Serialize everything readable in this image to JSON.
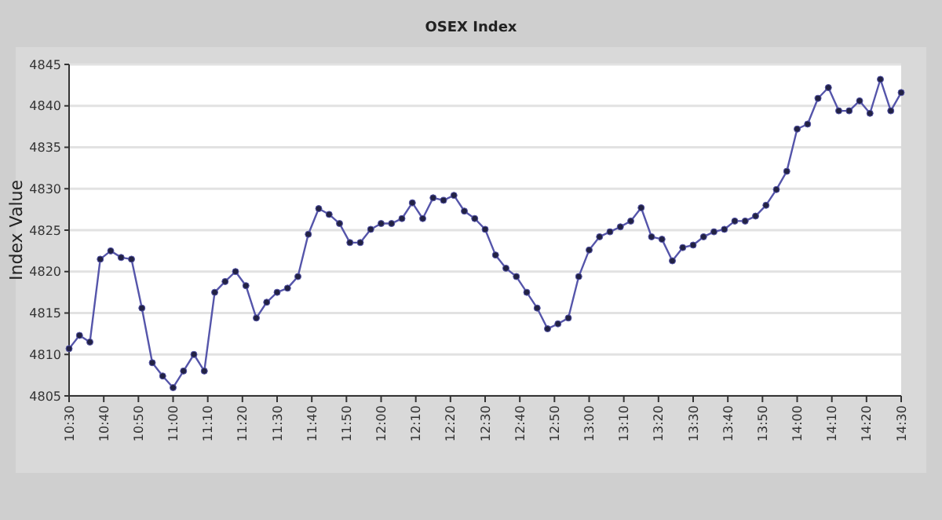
{
  "chart_data": {
    "type": "line",
    "title": "OSEX Index",
    "ylabel": "Index Value",
    "x": [
      10.5,
      10.55,
      10.6,
      10.65,
      10.7,
      10.75,
      10.8,
      10.85,
      10.9,
      10.95,
      11,
      11.05,
      11.1,
      11.15,
      11.2,
      11.25,
      11.3,
      11.35,
      11.4,
      11.45,
      11.5,
      11.55,
      11.6,
      11.65,
      11.7,
      11.75,
      11.8,
      11.85,
      11.9,
      11.95,
      12,
      12.05,
      12.1,
      12.15,
      12.2,
      12.25,
      12.3,
      12.35,
      12.4,
      12.45,
      12.5,
      12.55,
      12.6,
      12.65,
      12.7,
      12.75,
      12.8,
      12.85,
      12.9,
      12.95,
      13,
      13.05,
      13.1,
      13.15,
      13.2,
      13.25,
      13.3,
      13.35,
      13.4,
      13.45,
      13.5,
      13.55,
      13.6,
      13.65,
      13.7,
      13.75,
      13.8,
      13.85,
      13.9,
      13.95,
      14,
      14.05,
      14.1,
      14.15,
      14.2,
      14.25,
      14.3,
      14.35,
      14.4,
      14.45,
      14.5
    ],
    "series": [
      {
        "color": "#5555aa",
        "values": [
          4810.7,
          4812.3,
          4811.5,
          4821.5,
          4822.5,
          4821.7,
          4821.5,
          4815.6,
          4809,
          4807.4,
          4806,
          4808,
          4810,
          4808,
          4817.5,
          4818.8,
          4820,
          4818.3,
          4814.4,
          4816.3,
          4817.5,
          4818,
          4819.4,
          4824.5,
          4827.6,
          4826.9,
          4825.8,
          4823.5,
          4823.5,
          4825.1,
          4825.8,
          4825.8,
          4826.4,
          4828.3,
          4826.4,
          4828.9,
          4828.6,
          4829.2,
          4827.3,
          4826.4,
          4825.1,
          4822,
          4820.4,
          4819.4,
          4817.5,
          4815.6,
          4813.1,
          4813.7,
          4814.4,
          4819.4,
          4822.6,
          4824.2,
          4824.8,
          4825.4,
          4826.1,
          4827.7,
          4824.2,
          4823.9,
          4821.3,
          4822.9,
          4823.2,
          4824.2,
          4824.8,
          4825.1,
          4826.1,
          4826.1,
          4826.7,
          4828,
          4829.9,
          4832.1,
          4837.2,
          4837.8,
          4840.9,
          4842.2,
          4839.4,
          4839.4,
          4840.6,
          4839.1,
          4843.2,
          4839.4,
          4841.6
        ]
      }
    ],
    "xlim": [
      10.5,
      14.5
    ],
    "xticks": [
      {
        "value": 10.5,
        "label": "10:30"
      },
      {
        "value": 10.6667,
        "label": "10:40"
      },
      {
        "value": 10.8333,
        "label": "10:50"
      },
      {
        "value": 11,
        "label": "11:00"
      },
      {
        "value": 11.1667,
        "label": "11:10"
      },
      {
        "value": 11.3333,
        "label": "11:20"
      },
      {
        "value": 11.5,
        "label": "11:30"
      },
      {
        "value": 11.6667,
        "label": "11:40"
      },
      {
        "value": 11.8333,
        "label": "11:50"
      },
      {
        "value": 12,
        "label": "12:00"
      },
      {
        "value": 12.1667,
        "label": "12:10"
      },
      {
        "value": 12.3333,
        "label": "12:20"
      },
      {
        "value": 12.5,
        "label": "12:30"
      },
      {
        "value": 12.6667,
        "label": "12:40"
      },
      {
        "value": 12.8333,
        "label": "12:50"
      },
      {
        "value": 13,
        "label": "13:00"
      },
      {
        "value": 13.1667,
        "label": "13:10"
      },
      {
        "value": 13.3333,
        "label": "13:20"
      },
      {
        "value": 13.5,
        "label": "13:30"
      },
      {
        "value": 13.6667,
        "label": "13:40"
      },
      {
        "value": 13.8333,
        "label": "13:50"
      },
      {
        "value": 14,
        "label": "14:00"
      },
      {
        "value": 14.1667,
        "label": "14:10"
      },
      {
        "value": 14.3333,
        "label": "14:20"
      },
      {
        "value": 14.5,
        "label": "14:30"
      }
    ],
    "ylim": [
      4805,
      4845
    ],
    "yticks": [
      4805,
      4810,
      4815,
      4820,
      4825,
      4830,
      4835,
      4840,
      4845
    ],
    "grid": "y",
    "marker": "circle",
    "line_style": "solid"
  }
}
